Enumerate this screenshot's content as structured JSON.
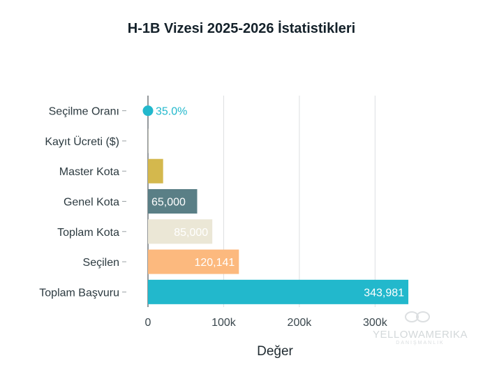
{
  "chart_data": {
    "type": "bar",
    "orientation": "horizontal",
    "title": "H-1B Vizesi 2025-2026 İstatistikleri",
    "xlabel": "Değer",
    "ylabel": "",
    "xlim": [
      0,
      355000
    ],
    "x_ticks": [
      0,
      100000,
      200000,
      300000
    ],
    "x_tick_labels": [
      "0",
      "100k",
      "200k",
      "300k"
    ],
    "grid": "vertical",
    "categories": [
      "Seçilme Oranı",
      "Kayıt Ücreti ($)",
      "Master Kota",
      "Genel Kota",
      "Toplam Kota",
      "Seçilen",
      "Toplam Başvuru"
    ],
    "values": [
      35.0,
      215,
      20000,
      65000,
      85000,
      120141,
      343981
    ],
    "data_labels": [
      "35.0%",
      "",
      "",
      "65,000",
      "85,000",
      "120,141",
      "343,981"
    ],
    "colors": [
      "#22b8cc",
      "#e9dfa9",
      "#d4b84d",
      "#5a7f86",
      "#ebe7d6",
      "#fcb97e",
      "#22b8cc"
    ],
    "label_colors": [
      "#22b8cc",
      "#ffffff",
      "#ffffff",
      "#ffffff",
      "#ffffff",
      "#ffffff",
      "#ffffff"
    ],
    "marker_categories": [
      "Seçilme Oranı"
    ]
  },
  "watermark": {
    "brand": "YELLOWAMERIKA",
    "sub": "DANIŞMANLIK"
  }
}
